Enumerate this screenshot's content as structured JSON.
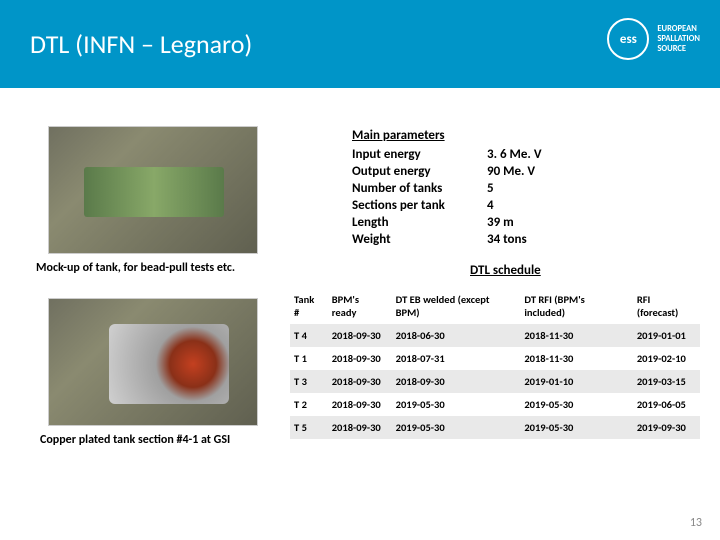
{
  "header": {
    "title": "DTL (INFN – Legnaro)",
    "logo_mark": "ess",
    "logo_text_l1": "EUROPEAN",
    "logo_text_l2": "SPALLATION",
    "logo_text_l3": "SOURCE",
    "bar_color": "#0095c8"
  },
  "captions": {
    "photo1": "Mock-up of tank, for bead-pull tests etc.",
    "photo2": "Copper plated tank section #4-1 at GSI"
  },
  "params": {
    "heading": "Main parameters",
    "rows": [
      {
        "label": "Input energy",
        "value": "3. 6 Me. V"
      },
      {
        "label": "Output energy",
        "value": "90 Me. V"
      },
      {
        "label": "Number of tanks",
        "value": "5"
      },
      {
        "label": "Sections per tank",
        "value": "4"
      },
      {
        "label": "Length",
        "value": "39 m"
      },
      {
        "label": "Weight",
        "value": "34 tons"
      }
    ]
  },
  "schedule": {
    "title": "DTL schedule",
    "columns": [
      "Tank #",
      "BPM's ready",
      "DT EB welded (except BPM)",
      "DT RFI (BPM's included)",
      "RFI (forecast)"
    ],
    "rows": [
      [
        "T 4",
        "2018-09-30",
        "2018-06-30",
        "2018-11-30",
        "2019-01-01"
      ],
      [
        "T 1",
        "2018-09-30",
        "2018-07-31",
        "2018-11-30",
        "2019-02-10"
      ],
      [
        "T 3",
        "2018-09-30",
        "2018-09-30",
        "2019-01-10",
        "2019-03-15"
      ],
      [
        "T 2",
        "2018-09-30",
        "2019-05-30",
        "2019-05-30",
        "2019-06-05"
      ],
      [
        "T 5",
        "2018-09-30",
        "2019-05-30",
        "2019-05-30",
        "2019-09-30"
      ]
    ]
  },
  "page_number": "13"
}
